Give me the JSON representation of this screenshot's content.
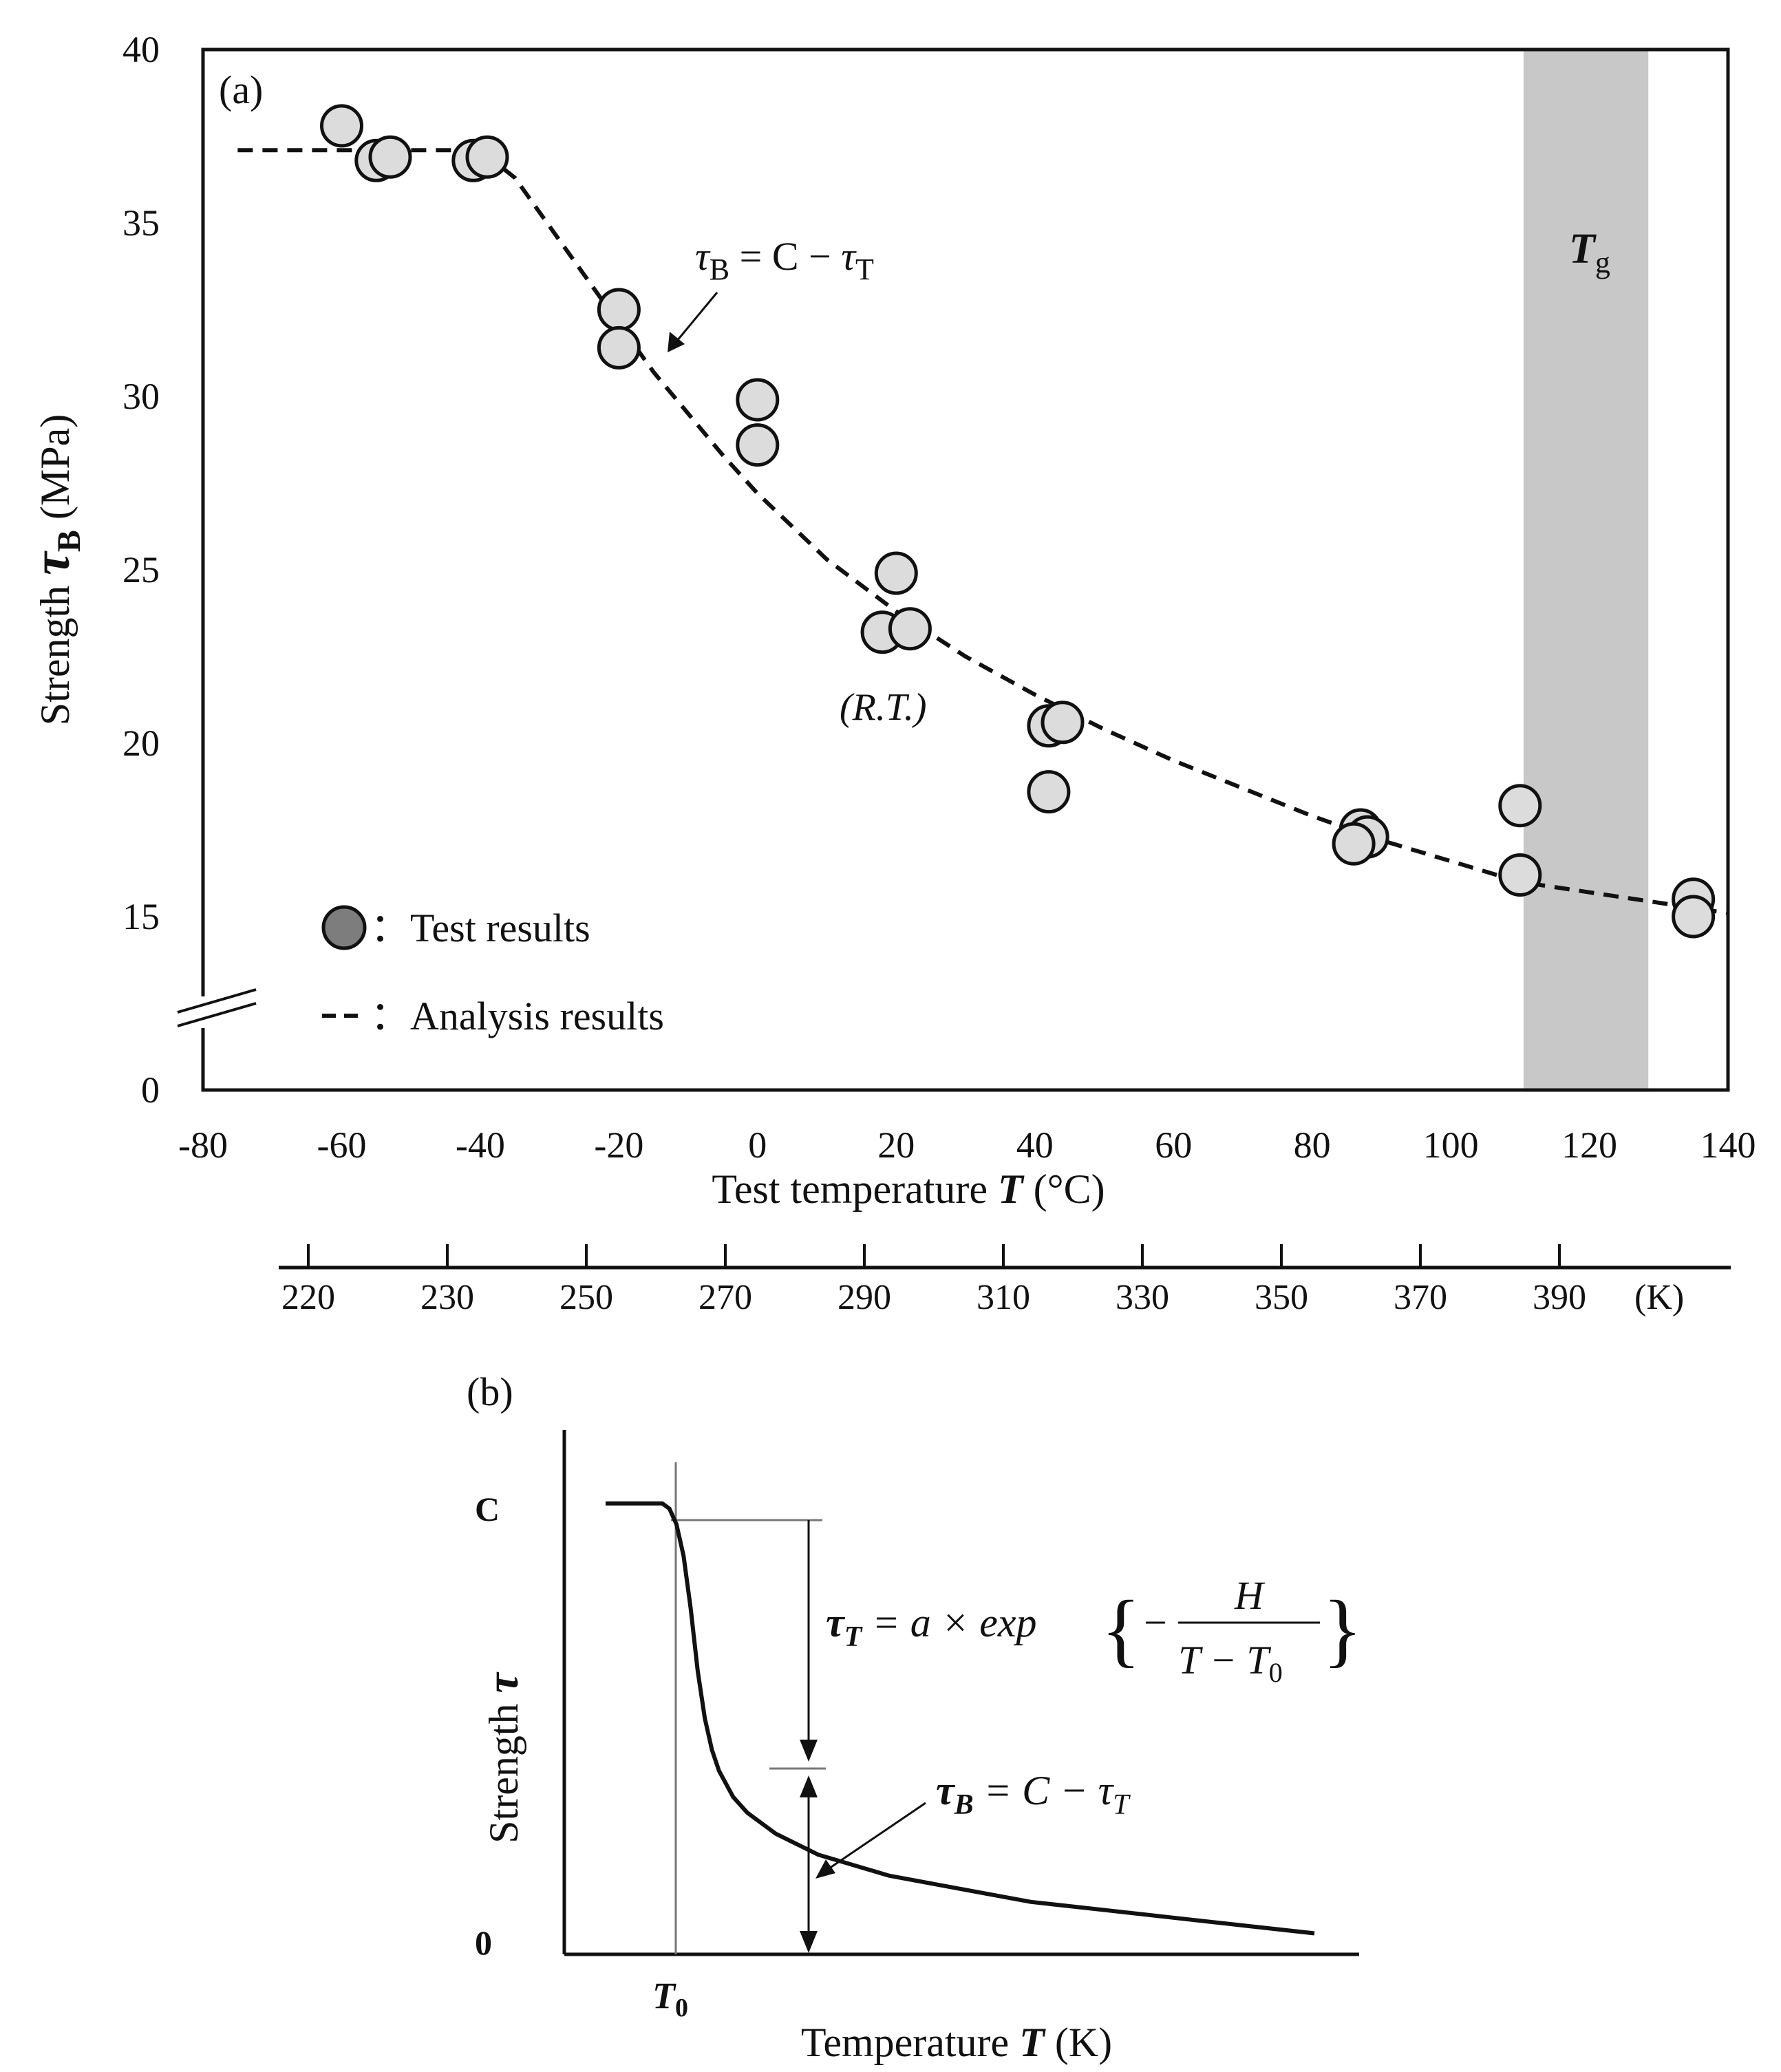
{
  "chart_data": [
    {
      "type": "scatter",
      "panel_label": "(a)",
      "xlabel": "Test temperature T (°C)",
      "xlabel_parts": {
        "pre": "Test temperature ",
        "sym": "T",
        "post": " (°C)"
      },
      "ylabel_parts": {
        "pre": "Strength ",
        "sym": "τ",
        "sub": "B",
        "post": " (MPa)"
      },
      "xlim": [
        -80,
        140
      ],
      "ylim_display": [
        10,
        40
      ],
      "y_axis_break": true,
      "x_ticks": [
        "-80",
        "-60",
        "-40",
        "-20",
        "0",
        "20",
        "40",
        "60",
        "80",
        "100",
        "120",
        "140"
      ],
      "y_ticks": [
        "0",
        "15",
        "20",
        "25",
        "30",
        "35",
        "40"
      ],
      "secondary_x_axis": {
        "unit_label": "(K)",
        "ticks": [
          "220",
          "230",
          "250",
          "270",
          "290",
          "310",
          "330",
          "350",
          "370",
          "390"
        ]
      },
      "shaded_region": {
        "label_sym": "T",
        "label_sub": "g",
        "x_from": 110.5,
        "x_to": 128.5
      },
      "annotations": {
        "formula": {
          "sym": "τ",
          "sub": "B",
          "eq": " = C − ",
          "sym2": "τ",
          "sub2": "T"
        },
        "rt_label": "(R.T.)"
      },
      "series": [
        {
          "name": "Test results",
          "legend_label": "：Test results",
          "marker": "circle",
          "points": [
            {
              "x": -60,
              "y": 37.8
            },
            {
              "x": -55,
              "y": 36.8
            },
            {
              "x": -53,
              "y": 36.9
            },
            {
              "x": -41,
              "y": 36.8
            },
            {
              "x": -39,
              "y": 36.9
            },
            {
              "x": -20,
              "y": 32.5
            },
            {
              "x": -20,
              "y": 31.4
            },
            {
              "x": 0,
              "y": 29.9
            },
            {
              "x": 0,
              "y": 28.6
            },
            {
              "x": 20,
              "y": 24.9
            },
            {
              "x": 18,
              "y": 23.2
            },
            {
              "x": 22,
              "y": 23.3
            },
            {
              "x": 42,
              "y": 20.5
            },
            {
              "x": 44,
              "y": 20.6
            },
            {
              "x": 42,
              "y": 18.6
            },
            {
              "x": 87,
              "y": 17.5
            },
            {
              "x": 88,
              "y": 17.3
            },
            {
              "x": 86,
              "y": 17.1
            },
            {
              "x": 110,
              "y": 18.2
            },
            {
              "x": 110,
              "y": 16.2
            },
            {
              "x": 135,
              "y": 15.5
            },
            {
              "x": 135,
              "y": 15.0
            }
          ]
        },
        {
          "name": "Analysis results",
          "legend_label": "：Analysis results",
          "style": "dashed",
          "x": [
            -75,
            -40,
            -35,
            -30,
            -25,
            -20,
            -15,
            -10,
            -5,
            0,
            10,
            20,
            30,
            40,
            50,
            60,
            70,
            80,
            90,
            100,
            110,
            120,
            130,
            140
          ],
          "y": [
            37.1,
            37.1,
            36.3,
            34.9,
            33.5,
            32.1,
            30.7,
            29.5,
            28.3,
            27.2,
            25.3,
            23.8,
            22.5,
            21.4,
            20.4,
            19.5,
            18.7,
            17.9,
            17.2,
            16.6,
            16.0,
            15.7,
            15.4,
            15.1
          ]
        }
      ]
    },
    {
      "type": "line",
      "panel_label": "(b)",
      "xlabel_parts": {
        "pre": "Temperature  ",
        "sym": "T",
        "post": " (K)"
      },
      "ylabel_parts": {
        "pre": "Strength ",
        "sym": "τ"
      },
      "y_tick_labels": {
        "top": "C",
        "bottom": "0"
      },
      "x_tick_label": {
        "sym": "T",
        "sub": "0"
      },
      "x_normalized": [
        0.0,
        0.08,
        0.09,
        0.1,
        0.11,
        0.12,
        0.13,
        0.14,
        0.15,
        0.16,
        0.18,
        0.2,
        0.24,
        0.3,
        0.4,
        0.5,
        0.6,
        0.7,
        0.8,
        0.9,
        1.0
      ],
      "y_normalized": [
        0.86,
        0.86,
        0.85,
        0.82,
        0.76,
        0.66,
        0.54,
        0.45,
        0.39,
        0.35,
        0.3,
        0.27,
        0.23,
        0.19,
        0.15,
        0.125,
        0.1,
        0.085,
        0.07,
        0.055,
        0.04
      ],
      "equations": {
        "tau_t": {
          "lhs_sym": "τ",
          "lhs_sub": "T",
          "mid": " = a × exp",
          "minus": "−",
          "num": "H",
          "den_a": "T − T",
          "den_sub": "0"
        },
        "tau_b": {
          "lhs_sym": "τ",
          "lhs_sub": "B",
          "mid": " = C − τ",
          "mid_sub": "T"
        }
      }
    }
  ]
}
